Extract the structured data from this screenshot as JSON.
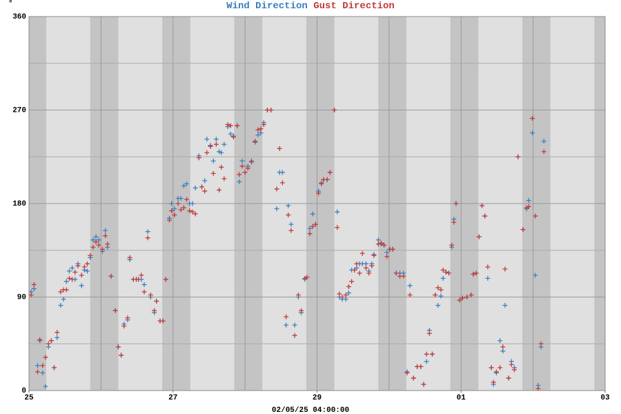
{
  "chart_data": {
    "type": "scatter",
    "y_label": "°",
    "x_label": "02/05/25 04:00:00",
    "xlim": [
      0,
      8
    ],
    "xticks": [
      {
        "value": 0,
        "label": "25"
      },
      {
        "value": 2,
        "label": "27"
      },
      {
        "value": 4,
        "label": "29"
      },
      {
        "value": 6,
        "label": "01"
      },
      {
        "value": 8,
        "label": "03"
      }
    ],
    "ylim": [
      0,
      360
    ],
    "yticks": [
      0,
      90,
      180,
      270,
      360
    ],
    "grid": true,
    "x": [
      0.03,
      0.07,
      0.12,
      0.15,
      0.19,
      0.23,
      0.27,
      0.31,
      0.35,
      0.39,
      0.44,
      0.48,
      0.52,
      0.56,
      0.6,
      0.64,
      0.68,
      0.73,
      0.77,
      0.81,
      0.85,
      0.89,
      0.93,
      0.97,
      1.02,
      1.06,
      1.09,
      1.14,
      1.2,
      1.24,
      1.28,
      1.32,
      1.37,
      1.4,
      1.45,
      1.49,
      1.52,
      1.56,
      1.6,
      1.65,
      1.69,
      1.74,
      1.77,
      1.82,
      1.86,
      1.9,
      1.95,
      1.98,
      2.02,
      2.07,
      2.11,
      2.15,
      2.19,
      2.23,
      2.27,
      2.31,
      2.36,
      2.4,
      2.44,
      2.47,
      2.52,
      2.56,
      2.6,
      2.64,
      2.67,
      2.71,
      2.76,
      2.8,
      2.84,
      2.89,
      2.92,
      2.96,
      3.0,
      3.04,
      3.09,
      3.14,
      3.18,
      3.22,
      3.26,
      3.31,
      3.36,
      3.44,
      3.48,
      3.52,
      3.57,
      3.6,
      3.64,
      3.69,
      3.74,
      3.78,
      3.83,
      3.86,
      3.9,
      3.94,
      3.98,
      4.02,
      4.06,
      4.09,
      4.14,
      4.18,
      4.24,
      4.28,
      4.31,
      4.35,
      4.4,
      4.44,
      4.48,
      4.52,
      4.55,
      4.59,
      4.63,
      4.68,
      4.72,
      4.76,
      4.79,
      4.85,
      4.89,
      4.93,
      4.97,
      5.01,
      5.05,
      5.1,
      5.15,
      5.2,
      5.25,
      5.29,
      5.34,
      5.39,
      5.44,
      5.48,
      5.52,
      5.56,
      5.6,
      5.64,
      5.68,
      5.72,
      5.75,
      5.79,
      5.83,
      5.87,
      5.9,
      5.93,
      5.98,
      6.02,
      6.08,
      6.14,
      6.17,
      6.21,
      6.25,
      6.29,
      6.33,
      6.37,
      6.42,
      6.45,
      6.49,
      6.54,
      6.58,
      6.61,
      6.66,
      6.7,
      6.74,
      6.79,
      6.86,
      6.91,
      6.94,
      6.99,
      7.03,
      7.07,
      7.11,
      7.15
    ],
    "series": [
      {
        "name": "Wind Direction",
        "color": "#3a7fc0",
        "values": [
          95,
          98,
          24,
          48,
          17,
          4,
          42,
          48,
          22,
          51,
          82,
          88,
          105,
          115,
          118,
          107,
          122,
          101,
          116,
          115,
          128,
          145,
          148,
          145,
          134,
          154,
          138,
          110,
          77,
          42,
          34,
          64,
          68,
          126,
          107,
          107,
          107,
          107,
          102,
          153,
          90,
          75,
          86,
          67,
          67,
          107,
          166,
          180,
          175,
          185,
          185,
          197,
          199,
          180,
          180,
          195,
          226,
          196,
          202,
          242,
          236,
          221,
          242,
          230,
          229,
          237,
          254,
          247,
          245,
          255,
          201,
          221,
          210,
          216,
          221,
          239,
          246,
          248,
          258,
          270,
          270,
          175,
          210,
          210,
          63,
          178,
          160,
          63,
          90,
          75,
          107,
          109,
          156,
          170,
          160,
          192,
          200,
          203,
          203,
          210,
          270,
          172,
          90,
          88,
          88,
          94,
          116,
          116,
          118,
          122,
          122,
          122,
          115,
          122,
          131,
          145,
          141,
          140,
          133,
          136,
          136,
          113,
          113,
          113,
          18,
          101,
          12,
          23,
          23,
          6,
          28,
          58,
          35,
          92,
          82,
          91,
          108,
          114,
          113,
          138,
          165,
          180,
          87,
          89,
          90,
          92,
          112,
          113,
          148,
          178,
          168,
          108,
          22,
          6,
          17,
          48,
          38,
          82,
          12,
          28,
          22,
          225,
          155,
          175,
          183,
          248,
          111,
          5,
          42,
          240
        ]
      },
      {
        "name": "Gust Direction",
        "color": "#c03a3a",
        "values": [
          92,
          102,
          18,
          49,
          24,
          32,
          45,
          48,
          22,
          56,
          95,
          97,
          97,
          108,
          107,
          114,
          120,
          111,
          119,
          122,
          130,
          138,
          143,
          140,
          136,
          149,
          141,
          110,
          77,
          42,
          34,
          62,
          70,
          128,
          107,
          107,
          107,
          111,
          95,
          147,
          92,
          77,
          86,
          67,
          67,
          107,
          164,
          173,
          169,
          180,
          174,
          176,
          184,
          173,
          172,
          170,
          224,
          196,
          192,
          229,
          235,
          209,
          237,
          193,
          215,
          204,
          256,
          255,
          244,
          255,
          208,
          216,
          210,
          214,
          220,
          240,
          251,
          252,
          256,
          270,
          270,
          194,
          233,
          200,
          71,
          169,
          154,
          53,
          92,
          77,
          108,
          109,
          151,
          158,
          160,
          190,
          199,
          203,
          203,
          210,
          270,
          157,
          93,
          90,
          92,
          100,
          105,
          116,
          122,
          113,
          132,
          118,
          113,
          120,
          130,
          141,
          142,
          140,
          129,
          136,
          136,
          113,
          110,
          110,
          17,
          92,
          12,
          23,
          23,
          6,
          35,
          55,
          35,
          92,
          99,
          97,
          116,
          114,
          113,
          140,
          162,
          180,
          87,
          89,
          90,
          92,
          112,
          113,
          148,
          178,
          168,
          119,
          22,
          8,
          18,
          22,
          42,
          117,
          12,
          25,
          20,
          225,
          155,
          176,
          177,
          262,
          168,
          2,
          45,
          230
        ]
      }
    ]
  }
}
